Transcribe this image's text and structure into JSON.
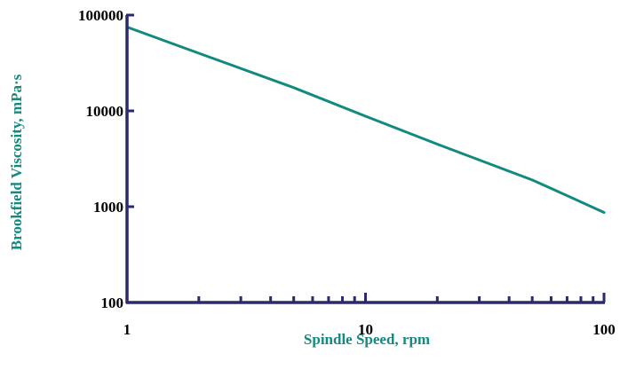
{
  "chart_data": {
    "type": "line",
    "title": "",
    "xlabel": "Spindle Speed, rpm",
    "ylabel": "Brookfield Viscosity, mPa·s",
    "x_scale": "log",
    "y_scale": "log",
    "xlim": [
      1,
      100
    ],
    "ylim": [
      100,
      100000
    ],
    "x_tick_labels": [
      "1",
      "10",
      "100"
    ],
    "y_tick_labels": [
      "100",
      "1000",
      "10000",
      "100000"
    ],
    "x_minor_ticks": [
      2,
      3,
      4,
      5,
      6,
      7,
      8,
      9,
      20,
      30,
      40,
      50,
      60,
      70,
      80,
      90
    ],
    "grid": false,
    "legend": "none",
    "series": [
      {
        "x": [
          1,
          2,
          5,
          10,
          20,
          50,
          60,
          100
        ],
        "y": [
          75000,
          40000,
          17500,
          8800,
          4500,
          1900,
          1550,
          870
        ]
      }
    ],
    "colors": {
      "axis": "#2b2a6e",
      "line": "#138a80",
      "axis_title": "#138a80",
      "tick_label": "#000000"
    }
  }
}
